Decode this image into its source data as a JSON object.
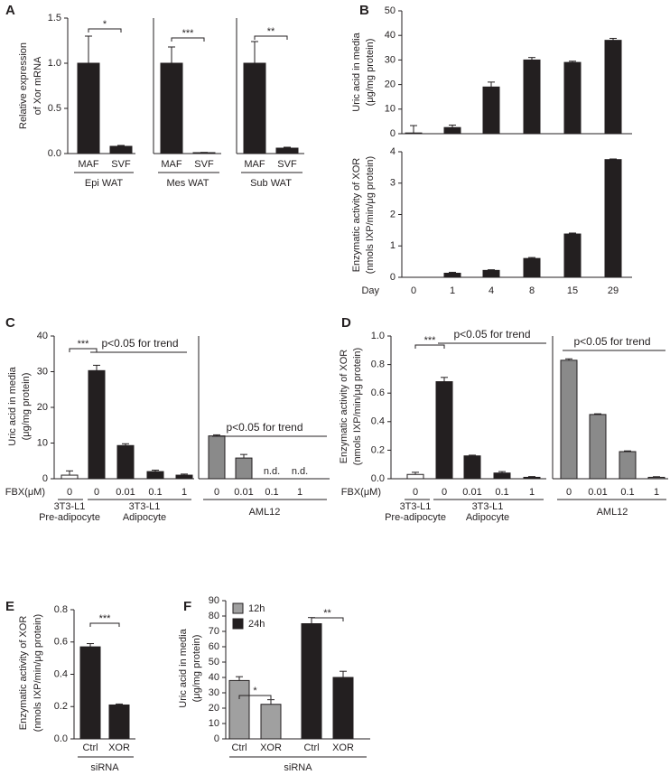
{
  "chart_data": [
    {
      "type": "bar",
      "panel": "A",
      "y_label": [
        "Relative expression",
        "of Xor mRNA"
      ],
      "ylim": [
        0,
        1.5
      ],
      "yticks": [
        {
          "value": 0,
          "label": "0.0"
        },
        0.5,
        {
          "value": 1,
          "label": "1.0"
        },
        1.5
      ],
      "color": "#231f20",
      "frames": [
        {
          "label": [
            "Epi WAT"
          ],
          "categories": [
            "MAF",
            "SVF"
          ],
          "values": [
            1.0,
            0.08
          ],
          "errors": [
            0.3,
            0.01
          ],
          "significance": [
            "*"
          ]
        },
        {
          "label": [
            "Mes WAT"
          ],
          "categories": [
            "MAF",
            "SVF"
          ],
          "values": [
            1.0,
            0.01
          ],
          "errors": [
            0.18,
            0.003
          ],
          "significance": [
            "***"
          ]
        },
        {
          "label": [
            "Sub WAT"
          ],
          "categories": [
            "MAF",
            "SVF"
          ],
          "values": [
            1.0,
            0.06
          ],
          "errors": [
            0.24,
            0.01
          ],
          "significance": [
            "**"
          ]
        }
      ]
    },
    {
      "type": "bar",
      "panel": "B",
      "y_label": [
        "Uric acid in media",
        "(μg/mg protein)"
      ],
      "ylim": [
        0,
        50
      ],
      "yticks": [
        0,
        10,
        20,
        30,
        40,
        50
      ],
      "color": "#231f20",
      "frames": [
        {
          "values": [
            0.3,
            2.5,
            19,
            30,
            29,
            38
          ],
          "errors": [
            3,
            1,
            2,
            1,
            0.5,
            0.8
          ]
        }
      ]
    },
    {
      "type": "bar",
      "y_label": [
        "Enzymatic activity of XOR",
        "(nmols IXP/min/μg protein)"
      ],
      "x_label": "Day",
      "ylim": [
        0,
        4
      ],
      "yticks": [
        0,
        1,
        2,
        3,
        4
      ],
      "color": "#231f20",
      "frames": [
        {
          "categories": [
            "0",
            "1",
            "4",
            "8",
            "15",
            "29"
          ],
          "values": [
            0,
            0.13,
            0.22,
            0.6,
            1.38,
            3.75
          ],
          "errors": [
            0,
            0.03,
            0.02,
            0.03,
            0.03,
            0.02
          ]
        }
      ]
    },
    {
      "type": "bar",
      "panel": "C",
      "y_label": [
        "Uric acid in media",
        "(μg/mg protein)"
      ],
      "x_label": "FBX(μM)",
      "ylim": [
        0,
        40
      ],
      "yticks": [
        0,
        10,
        20,
        30,
        40
      ],
      "color": "#231f20",
      "frames": [
        {
          "labels": [
            [
              "3T3-L1",
              "Pre-adipocyte"
            ],
            [
              "3T3-L1",
              "Adipocyte"
            ]
          ],
          "categories": [
            "0",
            "0",
            "0.01",
            "0.1",
            "1"
          ],
          "values": [
            1,
            30.3,
            9.3,
            2,
            1
          ],
          "errors": [
            1.2,
            1.5,
            0.5,
            0.4,
            0.3
          ],
          "colors": [
            "#ffffff",
            "#231f20",
            "#231f20",
            "#231f20",
            "#231f20"
          ],
          "significance": [
            "***"
          ],
          "trend": "p<0.05 for trend"
        },
        {
          "labels": [
            [
              "AML12"
            ]
          ],
          "categories": [
            "0",
            "0.01",
            "0.1",
            "1"
          ],
          "values": [
            12,
            5.8,
            null,
            null
          ],
          "errors": [
            0.3,
            1,
            null,
            null
          ],
          "value_labels": [
            null,
            null,
            "n.d.",
            "n.d."
          ],
          "colors": [
            "#8a8a8a",
            "#8a8a8a",
            "#8a8a8a",
            "#8a8a8a"
          ],
          "trend": "p<0.05 for trend"
        }
      ]
    },
    {
      "type": "bar",
      "panel": "D",
      "y_label": [
        "Enzymatic activity of XOR",
        "(nmols IXP/min/μg protein)"
      ],
      "x_label": "FBX(μM)",
      "ylim": [
        0,
        1
      ],
      "yticks": [
        {
          "value": 0,
          "label": "0.0"
        },
        0.2,
        0.4,
        0.6,
        0.8,
        {
          "value": 1,
          "label": "1.0"
        }
      ],
      "color": "#231f20",
      "frames": [
        {
          "labels": [
            [
              "3T3-L1",
              "Pre-adipocyte"
            ],
            [
              "3T3-L1",
              "Adipocyte"
            ]
          ],
          "categories": [
            "0",
            "0",
            "0.01",
            "0.1",
            "1"
          ],
          "values": [
            0.03,
            0.68,
            0.16,
            0.04,
            0.01
          ],
          "errors": [
            0.015,
            0.03,
            0.005,
            0.01,
            0.005
          ],
          "colors": [
            "#ffffff",
            "#231f20",
            "#231f20",
            "#231f20",
            "#231f20"
          ],
          "significance": [
            "***"
          ],
          "trend": "p<0.05 for trend"
        },
        {
          "labels": [
            [
              "AML12"
            ]
          ],
          "categories": [
            "0",
            "0.01",
            "0.1",
            "1"
          ],
          "values": [
            0.83,
            0.45,
            0.19,
            0.01
          ],
          "errors": [
            0.01,
            0.005,
            0.005,
            0.004
          ],
          "colors": [
            "#8a8a8a",
            "#8a8a8a",
            "#8a8a8a",
            "#8a8a8a"
          ],
          "trend": "p<0.05 for trend"
        }
      ]
    },
    {
      "type": "bar",
      "panel": "E",
      "y_label": [
        "Enzymatic activity of XOR",
        "(nmols IXP/min/μg protein)"
      ],
      "x_label": "siRNA",
      "ylim": [
        0,
        0.8
      ],
      "yticks": [
        {
          "value": 0,
          "label": "0.0"
        },
        0.2,
        0.4,
        0.6,
        0.8
      ],
      "color": "#231f20",
      "frames": [
        {
          "categories": [
            "Ctrl",
            "XOR"
          ],
          "values": [
            0.57,
            0.21
          ],
          "errors": [
            0.02,
            0.006
          ],
          "significance": [
            "***"
          ]
        }
      ]
    },
    {
      "type": "bar",
      "panel": "F",
      "y_label": [
        "Uric acid in media",
        "(μg/mg protein)"
      ],
      "x_label": "siRNA",
      "ylim": [
        0,
        90
      ],
      "yticks": [
        0,
        10,
        20,
        30,
        40,
        50,
        60,
        70,
        80,
        90
      ],
      "frames": [
        {
          "categories": [
            "Ctrl",
            "XOR",
            "Ctrl",
            "XOR"
          ],
          "significance": [
            "*",
            "**"
          ],
          "series": [
            {
              "name": "12h",
              "color": "#a0a0a0",
              "values": [
                38,
                22.5,
                null,
                null
              ],
              "errors": [
                2.5,
                3,
                null,
                null
              ]
            },
            {
              "name": "24h",
              "color": "#231f20",
              "values": [
                null,
                null,
                75,
                40
              ],
              "errors": [
                null,
                null,
                4,
                4
              ]
            }
          ]
        }
      ]
    }
  ]
}
